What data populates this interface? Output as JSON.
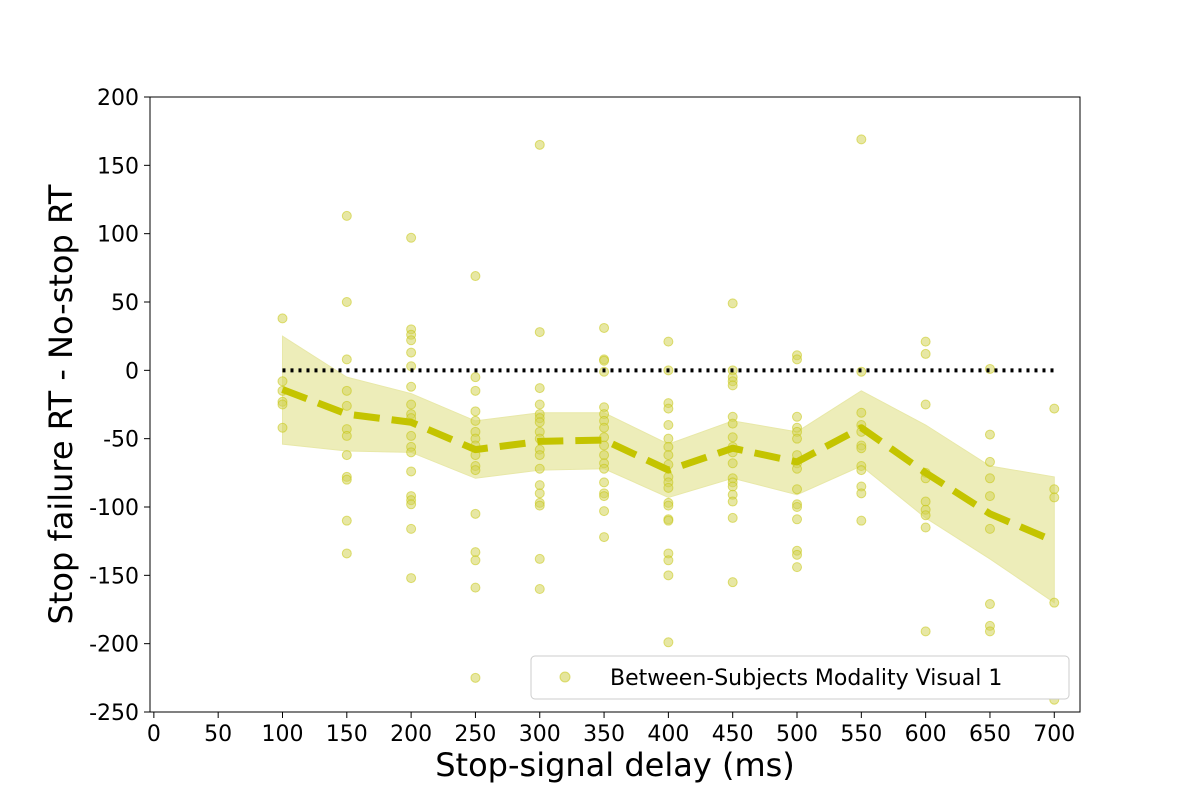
{
  "chart_data": {
    "type": "scatter",
    "xlabel": "Stop-signal delay (ms)",
    "ylabel": "Stop failure RT - No-stop RT",
    "xlim": [
      -3,
      720
    ],
    "ylim": [
      -250,
      200
    ],
    "xticks": [
      "0",
      "50",
      "100",
      "150",
      "200",
      "250",
      "300",
      "350",
      "400",
      "450",
      "500",
      "550",
      "600",
      "650",
      "700"
    ],
    "yticks": [
      "200",
      "150",
      "100",
      "50",
      "0",
      "-50",
      "-100",
      "-150",
      "-200",
      "-250"
    ],
    "reference_line": {
      "y": 0,
      "style": "dotted",
      "color": "#000000"
    },
    "legend": {
      "label": "Between-Subjects Modality Visual 1",
      "position": "lower-right"
    },
    "colors": {
      "series": "#c4c400",
      "points": "#d4d45a",
      "band": "#e8e8a8"
    },
    "series": [
      {
        "name": "Between-Subjects Modality Visual 1",
        "mean_line": {
          "x": [
            100,
            150,
            200,
            250,
            300,
            350,
            400,
            450,
            500,
            550,
            600,
            650,
            700
          ],
          "y": [
            -14,
            -32,
            -38,
            -58,
            -52,
            -51,
            -73,
            -57,
            -67,
            -42,
            -75,
            -105,
            -125
          ]
        },
        "band": {
          "x": [
            100,
            150,
            200,
            250,
            300,
            350,
            400,
            450,
            500,
            550,
            600,
            650,
            700
          ],
          "upper": [
            25,
            -5,
            -17,
            -37,
            -31,
            -31,
            -54,
            -37,
            -45,
            -15,
            -40,
            -70,
            -78
          ],
          "lower": [
            -54,
            -59,
            -60,
            -79,
            -73,
            -72,
            -93,
            -79,
            -91,
            -70,
            -108,
            -138,
            -170
          ]
        },
        "points": [
          [
            100,
            38
          ],
          [
            100,
            -8
          ],
          [
            100,
            -15
          ],
          [
            100,
            -23
          ],
          [
            100,
            -25
          ],
          [
            100,
            -42
          ],
          [
            150,
            113
          ],
          [
            150,
            50
          ],
          [
            150,
            8
          ],
          [
            150,
            -15
          ],
          [
            150,
            -26
          ],
          [
            150,
            -43
          ],
          [
            150,
            -48
          ],
          [
            150,
            -62
          ],
          [
            150,
            -78
          ],
          [
            150,
            -80
          ],
          [
            150,
            -110
          ],
          [
            150,
            -134
          ],
          [
            200,
            97
          ],
          [
            200,
            30
          ],
          [
            200,
            26
          ],
          [
            200,
            22
          ],
          [
            200,
            13
          ],
          [
            200,
            3
          ],
          [
            200,
            -12
          ],
          [
            200,
            -25
          ],
          [
            200,
            -32
          ],
          [
            200,
            -35
          ],
          [
            200,
            -48
          ],
          [
            200,
            -56
          ],
          [
            200,
            -60
          ],
          [
            200,
            -74
          ],
          [
            200,
            -92
          ],
          [
            200,
            -95
          ],
          [
            200,
            -98
          ],
          [
            200,
            -116
          ],
          [
            200,
            -152
          ],
          [
            250,
            69
          ],
          [
            250,
            -5
          ],
          [
            250,
            -15
          ],
          [
            250,
            -30
          ],
          [
            250,
            -37
          ],
          [
            250,
            -45
          ],
          [
            250,
            -50
          ],
          [
            250,
            -55
          ],
          [
            250,
            -62
          ],
          [
            250,
            -70
          ],
          [
            250,
            -73
          ],
          [
            250,
            -105
          ],
          [
            250,
            -133
          ],
          [
            250,
            -139
          ],
          [
            250,
            -159
          ],
          [
            250,
            -225
          ],
          [
            300,
            165
          ],
          [
            300,
            28
          ],
          [
            300,
            -13
          ],
          [
            300,
            -25
          ],
          [
            300,
            -32
          ],
          [
            300,
            -35
          ],
          [
            300,
            -38
          ],
          [
            300,
            -45
          ],
          [
            300,
            -50
          ],
          [
            300,
            -58
          ],
          [
            300,
            -62
          ],
          [
            300,
            -72
          ],
          [
            300,
            -84
          ],
          [
            300,
            -90
          ],
          [
            300,
            -97
          ],
          [
            300,
            -99
          ],
          [
            300,
            -138
          ],
          [
            300,
            -160
          ],
          [
            350,
            31
          ],
          [
            350,
            8
          ],
          [
            350,
            7
          ],
          [
            350,
            -1
          ],
          [
            350,
            -27
          ],
          [
            350,
            -32
          ],
          [
            350,
            -37
          ],
          [
            350,
            -42
          ],
          [
            350,
            -49
          ],
          [
            350,
            -55
          ],
          [
            350,
            -62
          ],
          [
            350,
            -68
          ],
          [
            350,
            -72
          ],
          [
            350,
            -82
          ],
          [
            350,
            -90
          ],
          [
            350,
            -92
          ],
          [
            350,
            -103
          ],
          [
            350,
            -122
          ],
          [
            400,
            21
          ],
          [
            400,
            0
          ],
          [
            400,
            -24
          ],
          [
            400,
            -28
          ],
          [
            400,
            -40
          ],
          [
            400,
            -50
          ],
          [
            400,
            -56
          ],
          [
            400,
            -62
          ],
          [
            400,
            -69
          ],
          [
            400,
            -78
          ],
          [
            400,
            -82
          ],
          [
            400,
            -86
          ],
          [
            400,
            -97
          ],
          [
            400,
            -99
          ],
          [
            400,
            -109
          ],
          [
            400,
            -110
          ],
          [
            400,
            -134
          ],
          [
            400,
            -139
          ],
          [
            400,
            -150
          ],
          [
            400,
            -199
          ],
          [
            450,
            49
          ],
          [
            450,
            0
          ],
          [
            450,
            -5
          ],
          [
            450,
            -8
          ],
          [
            450,
            -11
          ],
          [
            450,
            -34
          ],
          [
            450,
            -39
          ],
          [
            450,
            -49
          ],
          [
            450,
            -56
          ],
          [
            450,
            -60
          ],
          [
            450,
            -68
          ],
          [
            450,
            -79
          ],
          [
            450,
            -82
          ],
          [
            450,
            -85
          ],
          [
            450,
            -91
          ],
          [
            450,
            -96
          ],
          [
            450,
            -108
          ],
          [
            450,
            -155
          ],
          [
            500,
            11
          ],
          [
            500,
            8
          ],
          [
            500,
            -34
          ],
          [
            500,
            -42
          ],
          [
            500,
            -45
          ],
          [
            500,
            -50
          ],
          [
            500,
            -62
          ],
          [
            500,
            -68
          ],
          [
            500,
            -72
          ],
          [
            500,
            -87
          ],
          [
            500,
            -98
          ],
          [
            500,
            -100
          ],
          [
            500,
            -109
          ],
          [
            500,
            -132
          ],
          [
            500,
            -135
          ],
          [
            500,
            -144
          ],
          [
            550,
            169
          ],
          [
            550,
            -1
          ],
          [
            550,
            -31
          ],
          [
            550,
            -40
          ],
          [
            550,
            -45
          ],
          [
            550,
            -55
          ],
          [
            550,
            -57
          ],
          [
            550,
            -70
          ],
          [
            550,
            -73
          ],
          [
            550,
            -85
          ],
          [
            550,
            -90
          ],
          [
            550,
            -110
          ],
          [
            600,
            21
          ],
          [
            600,
            12
          ],
          [
            600,
            -25
          ],
          [
            600,
            -75
          ],
          [
            600,
            -79
          ],
          [
            600,
            -96
          ],
          [
            600,
            -102
          ],
          [
            600,
            -106
          ],
          [
            600,
            -115
          ],
          [
            600,
            -191
          ],
          [
            650,
            1
          ],
          [
            650,
            -47
          ],
          [
            650,
            -67
          ],
          [
            650,
            -79
          ],
          [
            650,
            -92
          ],
          [
            650,
            -116
          ],
          [
            650,
            -171
          ],
          [
            650,
            -187
          ],
          [
            650,
            -191
          ],
          [
            700,
            -28
          ],
          [
            700,
            -87
          ],
          [
            700,
            -93
          ],
          [
            700,
            -170
          ],
          [
            700,
            -241
          ]
        ]
      }
    ]
  }
}
